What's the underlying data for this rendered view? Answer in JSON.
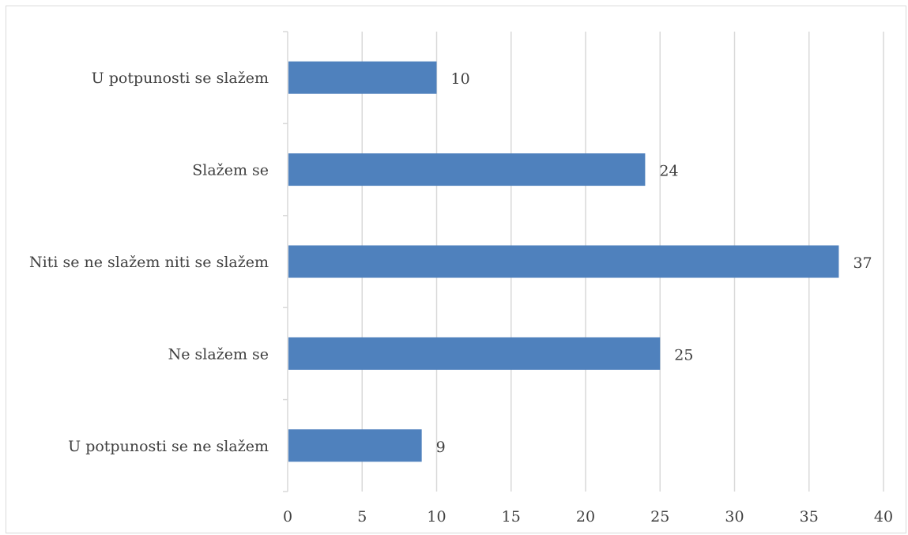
{
  "chart_data": {
    "type": "bar",
    "orientation": "horizontal",
    "categories": [
      "U potpunosti se slažem",
      "Slažem se",
      "Niti se ne slažem niti se slažem",
      "Ne slažem se",
      "U potpunosti se ne slažem"
    ],
    "values": [
      10,
      24,
      37,
      25,
      9
    ],
    "xlim": [
      0,
      40
    ],
    "x_ticks": [
      "0",
      "5",
      "10",
      "15",
      "20",
      "25",
      "30",
      "35",
      "40"
    ],
    "grid": "vertical",
    "data_labels": true,
    "title": "",
    "xlabel": "",
    "ylabel": "",
    "bar_color": "#4f81bd",
    "grid_color": "#d9d9d9"
  }
}
